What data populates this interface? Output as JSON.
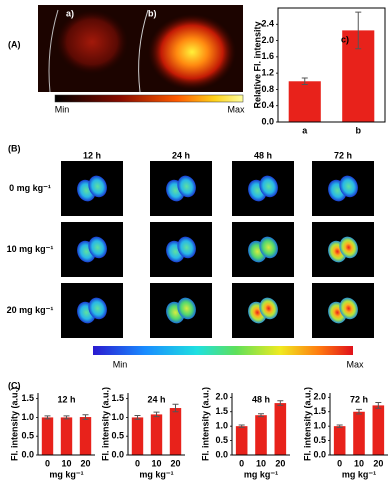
{
  "figure": {
    "panel_labels": [
      "(A)",
      "(B)",
      "(C)"
    ],
    "panel_a": {
      "labels": [
        "a)",
        "b)"
      ],
      "colorbar": [
        "Min",
        "Max"
      ]
    },
    "panel_b": {
      "columns": [
        "12 h",
        "24 h",
        "48 h",
        "72 h"
      ],
      "rows": [
        "0 mg kg⁻¹",
        "10 mg kg⁻¹",
        "20 mg kg⁻¹"
      ],
      "colorbar": [
        "Min",
        "Max"
      ]
    }
  },
  "chart_data": [
    {
      "type": "bar",
      "title": "c)",
      "y_label": "Relative Fl. intensity",
      "categories": [
        "a",
        "b"
      ],
      "values": [
        1.0,
        2.25
      ],
      "errors": [
        0.08,
        0.45
      ],
      "color": "#e8221b",
      "ylim": [
        0,
        2.8
      ],
      "yticks": [
        {
          "value": 0,
          "label": "0.0"
        },
        0.4,
        0.8,
        1.2,
        1.6,
        {
          "value": 2,
          "label": "2.0"
        },
        2.4
      ]
    },
    {
      "type": "bar",
      "title": "12 h",
      "y_label": "Fl. intensity (a.u.)",
      "x_label": "mg kg⁻¹",
      "categories": [
        "0",
        "10",
        "20"
      ],
      "values": [
        1.0,
        1.0,
        1.01
      ],
      "errors": [
        0.04,
        0.04,
        0.06
      ],
      "color": "#e8221b",
      "ylim": [
        0,
        1.65
      ],
      "yticks": [
        {
          "value": 0,
          "label": "0.0"
        },
        0.5,
        {
          "value": 1,
          "label": "1.0"
        },
        1.5
      ]
    },
    {
      "type": "bar",
      "title": "24 h",
      "y_label": "Fl. intensity (a.u.)",
      "x_label": "mg kg⁻¹",
      "categories": [
        "0",
        "10",
        "20"
      ],
      "values": [
        1.0,
        1.08,
        1.25
      ],
      "errors": [
        0.05,
        0.06,
        0.1
      ],
      "color": "#e8221b",
      "ylim": [
        0,
        1.65
      ],
      "yticks": [
        {
          "value": 0,
          "label": "0.0"
        },
        0.5,
        {
          "value": 1,
          "label": "1.0"
        },
        1.5
      ]
    },
    {
      "type": "bar",
      "title": "48 h",
      "y_label": "Fl. intensity (a.u.)",
      "x_label": "mg kg⁻¹",
      "categories": [
        "0",
        "10",
        "20"
      ],
      "values": [
        1.0,
        1.38,
        1.8
      ],
      "errors": [
        0.04,
        0.05,
        0.08
      ],
      "color": "#e8221b",
      "ylim": [
        0,
        2.15
      ],
      "yticks": [
        {
          "value": 0,
          "label": "0.0"
        },
        0.5,
        {
          "value": 1,
          "label": "1.0"
        },
        1.5,
        {
          "value": 2,
          "label": "2.0"
        }
      ]
    },
    {
      "type": "bar",
      "title": "72 h",
      "y_label": "Fl. intensity (a.u.)",
      "x_label": "mg kg⁻¹",
      "categories": [
        "0",
        "10",
        "20"
      ],
      "values": [
        1.0,
        1.5,
        1.72
      ],
      "errors": [
        0.04,
        0.08,
        0.1
      ],
      "color": "#e8221b",
      "ylim": [
        0,
        2.15
      ],
      "yticks": [
        {
          "value": 0,
          "label": "0.0"
        },
        0.5,
        {
          "value": 1,
          "label": "1.0"
        },
        1.5,
        {
          "value": 2,
          "label": "2.0"
        }
      ]
    }
  ]
}
